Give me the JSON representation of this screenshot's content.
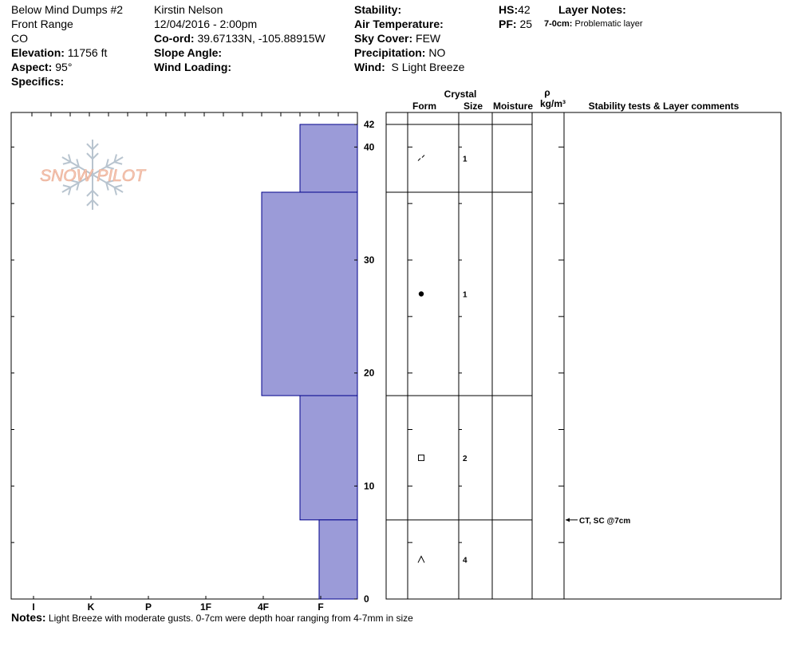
{
  "header": {
    "col1": {
      "name": "Below Mind Dumps #2",
      "range": "Front Range",
      "state": "CO",
      "elevation_label": "Elevation:",
      "elevation": "11756 ft",
      "aspect_label": "Aspect:",
      "aspect": "95°",
      "specifics_label": "Specifics:"
    },
    "col2": {
      "observer": "Kirstin Nelson",
      "datetime": "12/04/2016 - 2:00pm",
      "coord_label": "Co-ord:",
      "coord": "39.67133N, -105.88915W",
      "slope_label": "Slope Angle:",
      "wind_loading_label": "Wind Loading:"
    },
    "col3": {
      "stability_label": "Stability:",
      "air_temp_label": "Air Temperature:",
      "sky_label": "Sky Cover:",
      "sky": "FEW",
      "precip_label": "Precipitation:",
      "precip": "NO",
      "wind_label": "Wind:",
      "wind": "S Light Breeze"
    },
    "col4": {
      "hs_label": "HS:",
      "hs": "42",
      "pf_label": "PF:",
      "pf": "25",
      "layer_notes_label": "Layer Notes:",
      "layer_note_range": "7-0cm:",
      "layer_note_text": "Problematic layer"
    }
  },
  "logo": {
    "text": "SNOW PILOT"
  },
  "columns": {
    "crystal": "Crystal",
    "form": "Form",
    "size": "Size",
    "moisture": "Moisture",
    "rho": "ρ",
    "density_unit": "kg/m³",
    "comments": "Stability tests & Layer comments"
  },
  "notes": {
    "label": "Notes:",
    "text": "Light Breeze with moderate gusts.  0-7cm were depth hoar ranging from 4-7mm in size"
  },
  "chart_data": {
    "type": "bar",
    "y_axis": {
      "label": "",
      "range": [
        0,
        42
      ],
      "ticks": [
        0,
        10,
        20,
        30,
        40,
        42
      ]
    },
    "x_axis": {
      "label": "",
      "categories": [
        "I",
        "K",
        "P",
        "1F",
        "4F",
        "F"
      ]
    },
    "hardness_categories": [
      "F",
      "4F",
      "1F",
      "P",
      "K",
      "I"
    ],
    "layers": [
      {
        "bottom": 36,
        "top": 42,
        "hardness": "F-",
        "hardness_index": 1.5,
        "form_symbol": "decomposing",
        "size": "1"
      },
      {
        "bottom": 18,
        "top": 36,
        "hardness": "4F",
        "hardness_index": 2.5,
        "form_symbol": "rounded",
        "size": "1"
      },
      {
        "bottom": 7,
        "top": 18,
        "hardness": "F-",
        "hardness_index": 1.5,
        "form_symbol": "faceted",
        "size": "2"
      },
      {
        "bottom": 0,
        "top": 7,
        "hardness": "F",
        "hardness_index": 1.0,
        "form_symbol": "depth-hoar",
        "size": "4"
      }
    ],
    "annotations": [
      {
        "depth": 7,
        "text": "CT, SC @7cm"
      }
    ],
    "colors": {
      "bar_fill": "#9b9bd8",
      "bar_stroke": "#00008b",
      "logo_fill": "#f6c9b6",
      "logo_stroke": "#b8c4cf"
    }
  }
}
